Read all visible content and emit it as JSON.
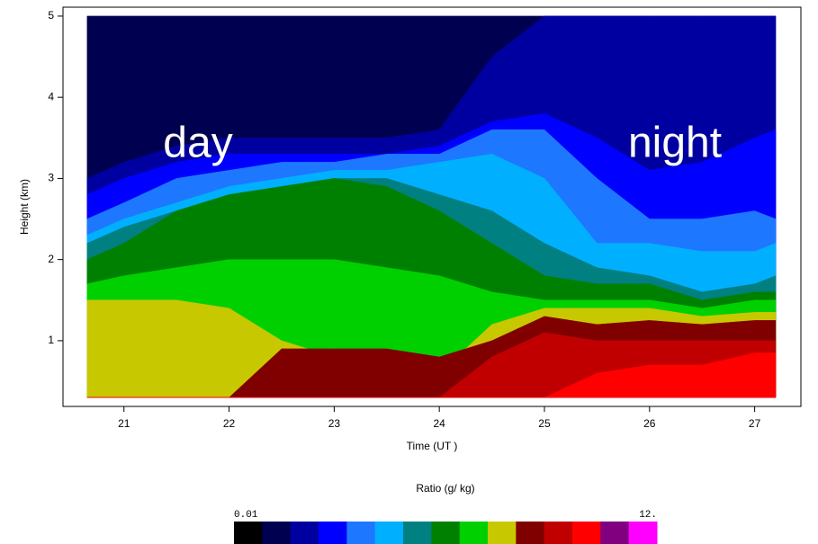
{
  "chart_data": {
    "type": "contour",
    "annotations": [
      "day",
      "night"
    ],
    "xlabel": "Time (UT  )",
    "ylabel": "Height (km)",
    "xlim": [
      20.42,
      27.44
    ],
    "ylim": [
      0.19,
      5.11
    ],
    "xticks": [
      21,
      22,
      23,
      24,
      25,
      26,
      27
    ],
    "yticks": [
      1,
      2,
      3,
      4,
      5
    ],
    "x_data_range": [
      20.65,
      27.2
    ],
    "y_data_range": [
      0.3,
      5
    ],
    "colorbar_title": "Ratio (g/ kg)",
    "colorbar_min_label": "0.01",
    "colorbar_max_label": "12.",
    "colormap": [
      "#000000",
      "#000050",
      "#0000a0",
      "#0000ff",
      "#1e78ff",
      "#00b0ff",
      "#008080",
      "#008000",
      "#00d000",
      "#c8c800",
      "#800000",
      "#c00000",
      "#ff0000",
      "#800080",
      "#ff00ff"
    ],
    "contour_times": [
      20.65,
      21,
      21.5,
      22,
      22.5,
      23,
      23.5,
      24,
      24.5,
      25,
      25.5,
      26,
      26.5,
      27,
      27.2
    ],
    "contours": [
      {
        "color_index": 1,
        "heights": [
          5,
          5,
          5,
          5,
          5,
          5,
          5,
          5,
          5,
          5,
          5,
          5,
          5,
          5,
          5
        ]
      },
      {
        "color_index": 2,
        "heights": [
          3.0,
          3.2,
          3.4,
          3.5,
          3.5,
          3.5,
          3.5,
          3.6,
          4.5,
          5,
          5,
          5,
          5,
          5,
          5
        ]
      },
      {
        "color_index": 3,
        "heights": [
          2.8,
          3.0,
          3.2,
          3.3,
          3.3,
          3.3,
          3.3,
          3.4,
          3.7,
          3.8,
          3.5,
          3.1,
          3.2,
          3.5,
          3.6
        ]
      },
      {
        "color_index": 4,
        "heights": [
          2.5,
          2.7,
          3.0,
          3.1,
          3.2,
          3.2,
          3.3,
          3.3,
          3.6,
          3.6,
          3.0,
          2.5,
          2.5,
          2.6,
          2.5
        ]
      },
      {
        "color_index": 5,
        "heights": [
          2.3,
          2.5,
          2.7,
          2.9,
          3.0,
          3.1,
          3.1,
          3.2,
          3.3,
          3.0,
          2.2,
          2.2,
          2.1,
          2.1,
          2.2
        ]
      },
      {
        "color_index": 6,
        "heights": [
          2.2,
          2.4,
          2.6,
          2.8,
          2.9,
          3.0,
          3.0,
          2.8,
          2.6,
          2.2,
          1.9,
          1.8,
          1.6,
          1.7,
          1.8
        ]
      },
      {
        "color_index": 7,
        "heights": [
          2.0,
          2.2,
          2.6,
          2.8,
          2.9,
          3.0,
          2.9,
          2.6,
          2.2,
          1.8,
          1.7,
          1.7,
          1.5,
          1.6,
          1.6
        ]
      },
      {
        "color_index": 8,
        "heights": [
          1.7,
          1.8,
          1.9,
          2.0,
          2.0,
          2.0,
          1.9,
          1.8,
          1.6,
          1.5,
          1.5,
          1.5,
          1.4,
          1.5,
          1.5
        ]
      },
      {
        "color_index": 9,
        "heights": [
          1.5,
          1.5,
          1.5,
          1.4,
          1.0,
          0.8,
          0.8,
          0.6,
          1.2,
          1.4,
          1.4,
          1.4,
          1.3,
          1.35,
          1.35
        ]
      },
      {
        "color_index": 10,
        "heights": [
          0.3,
          0.3,
          0.3,
          0.3,
          0.9,
          0.9,
          0.9,
          0.8,
          1.0,
          1.3,
          1.2,
          1.25,
          1.2,
          1.25,
          1.25
        ]
      },
      {
        "color_index": 11,
        "heights": [
          0.3,
          0.3,
          0.3,
          0.3,
          0.3,
          0.3,
          0.3,
          0.3,
          0.8,
          1.1,
          1.0,
          1.0,
          1.0,
          1.0,
          1.0
        ]
      },
      {
        "color_index": 12,
        "heights": [
          0.3,
          0.3,
          0.3,
          0.3,
          0.3,
          0.3,
          0.3,
          0.3,
          0.3,
          0.3,
          0.6,
          0.7,
          0.7,
          0.85,
          0.85
        ]
      }
    ]
  }
}
